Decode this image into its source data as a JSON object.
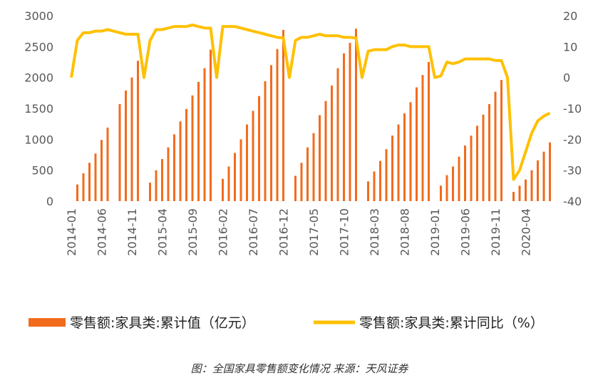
{
  "chart_data": {
    "type": "bar_line",
    "caption": "图：全国家具零售额变化情况 来源：天风证券",
    "categories": [
      "2014-01",
      null,
      null,
      null,
      null,
      "2014-06",
      null,
      null,
      null,
      null,
      "2014-11",
      null,
      null,
      null,
      null,
      "2015-04",
      null,
      null,
      null,
      null,
      "2015-09",
      null,
      null,
      null,
      null,
      "2016-02",
      null,
      null,
      null,
      null,
      "2016-07",
      null,
      null,
      null,
      null,
      "2016-12",
      null,
      null,
      null,
      null,
      "2017-05",
      null,
      null,
      null,
      null,
      "2017-10",
      null,
      null,
      null,
      null,
      "2018-03",
      null,
      null,
      null,
      null,
      "2018-08",
      null,
      null,
      null,
      null,
      "2019-01",
      null,
      null,
      null,
      null,
      "2019-06",
      null,
      null,
      null,
      null,
      "2019-11",
      null,
      null,
      null,
      null,
      "2020-04",
      null,
      null,
      null,
      null
    ],
    "series": [
      {
        "name": "零售额:家具类:累计值（亿元）",
        "type": "bar",
        "color": "#f26b1d",
        "values": [
          null,
          270,
          450,
          620,
          770,
          990,
          1190,
          null,
          1570,
          1790,
          2000,
          2270,
          null,
          300,
          500,
          680,
          870,
          1080,
          1290,
          1490,
          1710,
          1930,
          2150,
          2450,
          null,
          360,
          560,
          780,
          1000,
          1240,
          1460,
          1700,
          1940,
          2200,
          2460,
          2770,
          null,
          410,
          620,
          870,
          1100,
          1390,
          1620,
          1870,
          2150,
          2390,
          2560,
          2790,
          null,
          320,
          480,
          650,
          840,
          1060,
          1240,
          1420,
          1600,
          1840,
          2040,
          2250,
          null,
          250,
          420,
          560,
          720,
          900,
          1060,
          1220,
          1400,
          1570,
          1770,
          1960,
          null,
          150,
          250,
          350,
          500,
          660,
          800,
          950
        ]
      },
      {
        "name": "零售额:家具类:累计同比（%）",
        "type": "line",
        "axis": "y2",
        "color": "#ffc000",
        "values": [
          0,
          12,
          14.5,
          14.5,
          15,
          15,
          15.5,
          15,
          14.5,
          14,
          14,
          14,
          0,
          12,
          15.5,
          15.5,
          16,
          16.5,
          16.5,
          16.5,
          17,
          16.5,
          16,
          16,
          0,
          16.5,
          16.5,
          16.5,
          16,
          15.5,
          15,
          14.5,
          14,
          13.5,
          13,
          12.8,
          0,
          12,
          13,
          13,
          13.5,
          14,
          13.5,
          13.5,
          13.5,
          13,
          13,
          12.8,
          0,
          8.5,
          9,
          9,
          9,
          10,
          10.5,
          10.5,
          10,
          10,
          10,
          10,
          0,
          0.5,
          5,
          4.5,
          5,
          6,
          6,
          6,
          6,
          6,
          5.5,
          5.5,
          0,
          -33,
          -30,
          -24,
          -18,
          -14,
          -12.5,
          -11.5
        ]
      }
    ],
    "ylim": [
      0,
      3000
    ],
    "yticks": [
      0,
      500,
      1000,
      1500,
      2000,
      2500,
      3000
    ],
    "y2lim": [
      -40,
      20
    ],
    "y2ticks": [
      -40,
      -30,
      -20,
      -10,
      0,
      10,
      20
    ],
    "grid": false,
    "legend": "bottom"
  }
}
